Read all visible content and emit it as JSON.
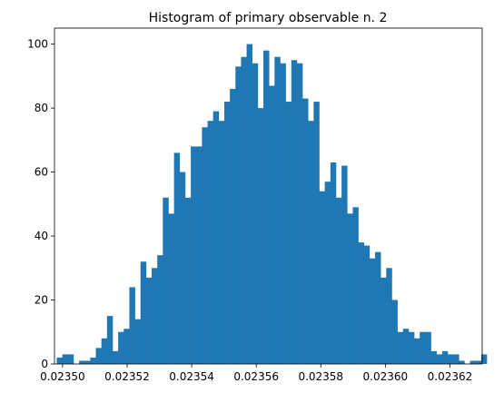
{
  "chart_data": {
    "type": "bar",
    "title": "Histogram of primary observable n. 2",
    "xlabel": "",
    "ylabel": "",
    "bar_color": "#1f77b4",
    "xlim": [
      0.0234975,
      0.02363
    ],
    "ylim": [
      0,
      105
    ],
    "bin_start": 0.0234982,
    "bin_width": 1.73e-06,
    "counts": [
      2,
      3,
      3,
      0,
      1,
      1,
      2,
      5,
      8,
      15,
      4,
      10,
      11,
      24,
      14,
      32,
      27,
      30,
      34,
      52,
      47,
      66,
      60,
      52,
      68,
      68,
      74,
      76,
      79,
      76,
      82,
      86,
      93,
      96,
      100,
      94,
      80,
      98,
      87,
      96,
      94,
      82,
      95,
      94,
      83,
      76,
      82,
      54,
      57,
      63,
      52,
      62,
      47,
      49,
      38,
      37,
      33,
      35,
      27,
      30,
      20,
      10,
      11,
      10,
      8,
      10,
      10,
      4,
      3,
      4,
      3,
      3,
      1,
      0,
      1,
      1,
      3
    ],
    "xticks": [
      {
        "value": 0.0235,
        "label": "0.02350"
      },
      {
        "value": 0.02352,
        "label": "0.02352"
      },
      {
        "value": 0.02354,
        "label": "0.02354"
      },
      {
        "value": 0.02356,
        "label": "0.02356"
      },
      {
        "value": 0.02358,
        "label": "0.02358"
      },
      {
        "value": 0.0236,
        "label": "0.02360"
      },
      {
        "value": 0.02362,
        "label": "0.02362"
      }
    ],
    "yticks": [
      {
        "value": 0,
        "label": "0"
      },
      {
        "value": 20,
        "label": "20"
      },
      {
        "value": 40,
        "label": "40"
      },
      {
        "value": 60,
        "label": "60"
      },
      {
        "value": 80,
        "label": "80"
      },
      {
        "value": 100,
        "label": "100"
      }
    ],
    "grid": false,
    "legend": "none"
  }
}
